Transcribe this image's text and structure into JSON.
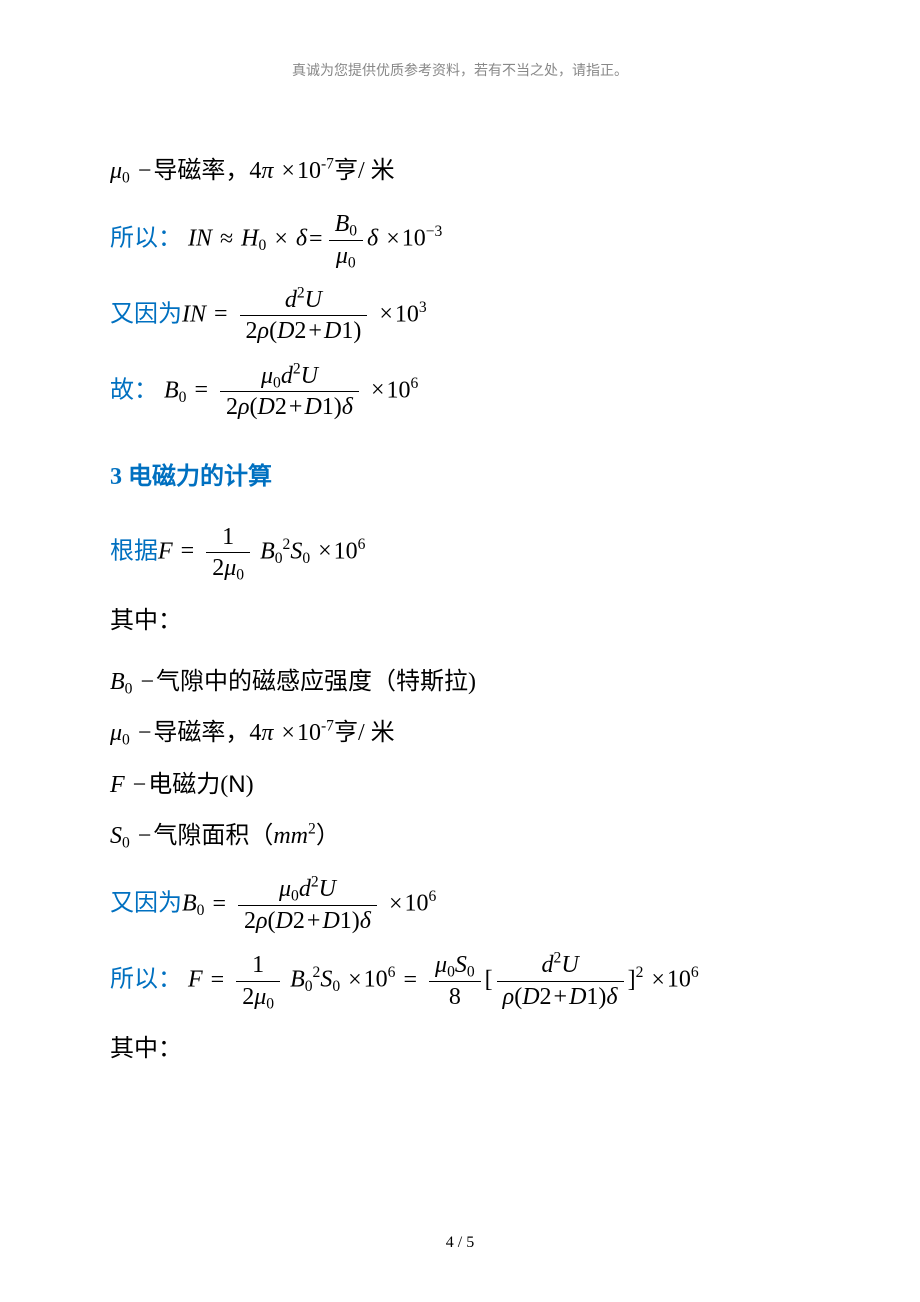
{
  "header": {
    "text": "真诚为您提供优质参考资料，若有不当之处，请指正。"
  },
  "colors": {
    "blue": "#0070c0",
    "black": "#000000",
    "header_gray": "#888888",
    "background": "#ffffff"
  },
  "typography": {
    "body_fontsize_pt": 18,
    "header_fontsize_pt": 10,
    "footer_fontsize_pt": 12,
    "math_font": "Times New Roman",
    "cjk_font": "SimSun"
  },
  "lines": {
    "l1": {
      "mu0": "μ",
      "sub1": "0",
      "dash": "−",
      "txt": "导磁率，",
      "four_pi": "4",
      "pi": "π",
      "times1": "×",
      "ten": "10",
      "exp": "-7",
      "unit": "亨/ 米"
    },
    "l2": {
      "prefix": "所以：",
      "IN": "IN",
      "approx": "≈",
      "H": "H",
      "sub0a": "0",
      "times": "×",
      "delta": "δ",
      "eq": "=",
      "B": "B",
      "sub0b": "0",
      "mu": "μ",
      "sub0c": "0",
      "delta2": "δ",
      "times2": "×",
      "ten": "10",
      "exp": "−3"
    },
    "l3": {
      "prefix": "又因为",
      "IN": "IN",
      "eq": "=",
      "num": "d",
      "exp_d": "2",
      "U": "U",
      "two": "2",
      "rho": "ρ",
      "lp": "(",
      "D2": "D",
      "n2": "2",
      "plus": "+",
      "D1": "D",
      "n1": "1",
      "rp": ")",
      "times": "×",
      "ten": "10",
      "exp": "3"
    },
    "l4": {
      "prefix": "故：",
      "B": "B",
      "sub0": "0",
      "eq": "=",
      "mu": "μ",
      "sub_mu": "0",
      "d": "d",
      "exp_d": "2",
      "U": "U",
      "two": "2",
      "rho": "ρ",
      "lp": "(",
      "D2": "D",
      "n2": "2",
      "plus": "+",
      "D1": "D",
      "n1": "1",
      "rp": ")",
      "delta": "δ",
      "times": "×",
      "ten": "10",
      "exp": "6"
    },
    "section3": {
      "title": "3 电磁力的计算"
    },
    "l5": {
      "prefix": "根据",
      "F": "F",
      "eq": "=",
      "one": "1",
      "two": "2",
      "mu": "μ",
      "sub_mu": "0",
      "B": "B",
      "subB": "0",
      "expB": "2",
      "S": "S",
      "subS": "0",
      "times": "×",
      "ten": "10",
      "exp": "6"
    },
    "l6": {
      "txt": "其中："
    },
    "l7": {
      "B": "B",
      "sub": "0",
      "dash": "−",
      "txt": "气隙中的磁感应强度（特斯拉",
      "rp": ")"
    },
    "l8": {
      "mu": "μ",
      "sub": "0",
      "dash": "−",
      "txt": "导磁率，",
      "four": "4",
      "pi": "π",
      "times": "×",
      "ten": "10",
      "exp": "-7",
      "unit": "亨/ 米"
    },
    "l9": {
      "F": "F",
      "dash": "−",
      "txt": "电磁力(",
      "N": "N",
      "rp": ")"
    },
    "l10": {
      "S": "S",
      "sub": "0",
      "dash": "−",
      "txt": "气隙面积（",
      "mm": "mm",
      "exp": "2",
      "rp": "）"
    },
    "l11": {
      "prefix": "又因为",
      "B": "B",
      "sub0": "0",
      "eq": "=",
      "mu": "μ",
      "sub_mu": "0",
      "d": "d",
      "exp_d": "2",
      "U": "U",
      "two": "2",
      "rho": "ρ",
      "lp": "(",
      "D2": "D",
      "n2": "2",
      "plus": "+",
      "D1": "D",
      "n1": "1",
      "rp2": ")",
      "delta": "δ",
      "times": "×",
      "ten": "10",
      "exp": "6"
    },
    "l12": {
      "prefix": "所以：",
      "F": "F",
      "eq": "=",
      "one": "1",
      "two": "2",
      "mu": "μ",
      "sub_mu": "0",
      "B": "B",
      "subB": "0",
      "expB": "2",
      "S": "S",
      "subS": "0",
      "times1": "×",
      "ten1": "10",
      "exp1": "6",
      "eq2": "=",
      "mu2": "μ",
      "sub_mu2": "0",
      "S2": "S",
      "subS2": "0",
      "eight": "8",
      "lb": "[",
      "d": "d",
      "exp_d": "2",
      "U": "U",
      "rho": "ρ",
      "lp": "(",
      "D2": "D",
      "n2": "2",
      "plus": "+",
      "D1": "D",
      "n1": "1",
      "rp": ")",
      "delta": "δ",
      "rb": "]",
      "sq": "2",
      "times2": "×",
      "ten2": "10",
      "exp2": "6"
    },
    "l13": {
      "txt": "其中："
    }
  },
  "footer": {
    "page": "4",
    "sep": " / ",
    "total": "5"
  }
}
